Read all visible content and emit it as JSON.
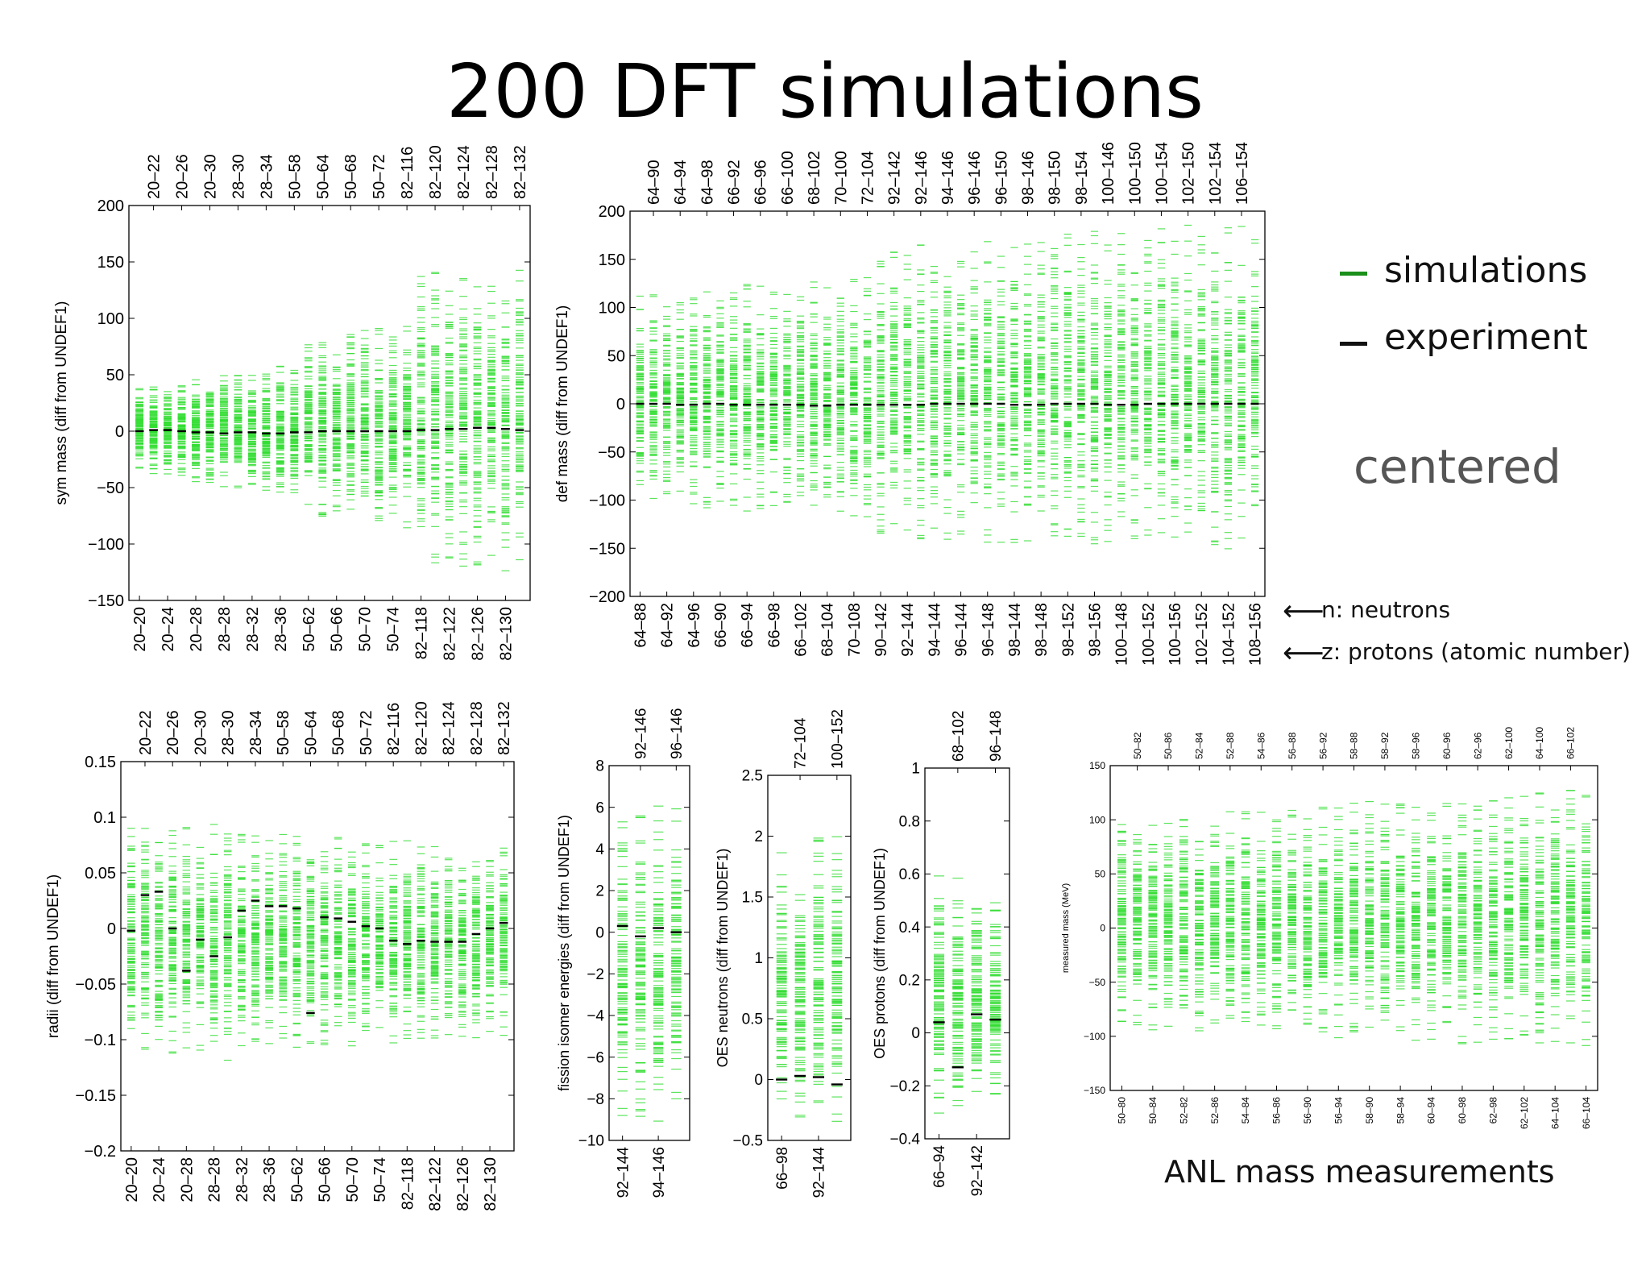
{
  "title": "200 DFT simulations",
  "legend": {
    "simulations": {
      "label": "simulations",
      "color": "#1a8f1a"
    },
    "experiment": {
      "label": "experiment",
      "color": "#111111"
    }
  },
  "centered_label": "centered",
  "notes": {
    "n": "n: neutrons",
    "z": "z: protons (atomic number)",
    "arrow": "⟵"
  },
  "anl_label": "ANL mass measurements",
  "colors": {
    "simulation": "#33dd33",
    "experiment": "#000000"
  },
  "chart_data": [
    {
      "type": "scatter",
      "ylabel": "sym mass (diff from UNDEF1)",
      "ylim": [
        -150,
        200
      ],
      "yticks": [
        -150,
        -100,
        -50,
        0,
        50,
        100,
        150,
        200
      ],
      "bottom_labels": [
        "20–20",
        "20–24",
        "20–28",
        "28–28",
        "28–32",
        "28–36",
        "50–62",
        "50–66",
        "50–70",
        "50–74",
        "82–118",
        "82–122",
        "82–126",
        "82–130"
      ],
      "top_labels": [
        "20–22",
        "20–26",
        "20–30",
        "28–30",
        "28–34",
        "50–58",
        "50–64",
        "50–68",
        "50–72",
        "82–116",
        "82–120",
        "82–124",
        "82–128",
        "82–132"
      ],
      "experiment": [
        0,
        1,
        1,
        0,
        -1,
        -1,
        -2,
        -1,
        -1,
        -2,
        -2,
        -1,
        -1,
        0,
        0,
        0,
        0,
        0,
        0,
        0,
        1,
        1,
        2,
        2,
        3,
        3,
        2,
        1
      ],
      "spread_low": [
        -35,
        -38,
        -40,
        -42,
        -45,
        -48,
        -50,
        -52,
        -55,
        -55,
        -58,
        -60,
        -75,
        -78,
        -78,
        -80,
        -82,
        -85,
        -85,
        -88,
        -120,
        -122,
        -124,
        -125,
        -125,
        -126,
        -126,
        -126
      ],
      "spread_high": [
        38,
        40,
        42,
        44,
        46,
        50,
        52,
        55,
        55,
        56,
        58,
        60,
        85,
        88,
        88,
        90,
        92,
        95,
        95,
        98,
        140,
        145,
        148,
        150,
        152,
        155,
        155,
        158
      ]
    },
    {
      "type": "scatter",
      "ylabel": "def mass (diff from UNDEF1)",
      "ylim": [
        -200,
        200
      ],
      "yticks": [
        -200,
        -150,
        -100,
        -50,
        0,
        50,
        100,
        150,
        200
      ],
      "bottom_labels": [
        "64–88",
        "64–92",
        "64–96",
        "66–90",
        "66–94",
        "66–98",
        "66–102",
        "68–104",
        "70–108",
        "90–142",
        "92–144",
        "94–144",
        "96–144",
        "96–148",
        "98–144",
        "98–148",
        "98–152",
        "98–156",
        "100–148",
        "100–152",
        "100–156",
        "102–152",
        "104–152",
        "108–156"
      ],
      "top_labels": [
        "64–90",
        "64–94",
        "64–98",
        "66–92",
        "66–96",
        "66–100",
        "68–102",
        "70–100",
        "72–104",
        "92–142",
        "92–146",
        "94–146",
        "96–146",
        "96–150",
        "98–146",
        "98–150",
        "98–154",
        "100–146",
        "100–150",
        "100–154",
        "102–150",
        "102–154",
        "106–154"
      ],
      "experiment": [
        0,
        0,
        0,
        -1,
        -1,
        0,
        0,
        -1,
        -1,
        -1,
        -1,
        -1,
        -1,
        -2,
        -2,
        -1,
        -1,
        -1,
        -1,
        -1,
        -1,
        -1,
        0,
        0,
        0,
        0,
        0,
        0,
        -1,
        -1,
        -1,
        0,
        0,
        0,
        0,
        -1,
        -1,
        -1,
        0,
        0,
        0,
        0,
        0,
        0,
        0,
        0,
        0
      ],
      "spread_low": [
        -100,
        -102,
        -104,
        -106,
        -108,
        -108,
        -110,
        -110,
        -112,
        -112,
        -112,
        -114,
        -114,
        -114,
        -116,
        -116,
        -118,
        -118,
        -140,
        -140,
        -140,
        -142,
        -142,
        -142,
        -143,
        -143,
        -144,
        -144,
        -145,
        -145,
        -146,
        -146,
        -147,
        -147,
        -148,
        -148,
        -148,
        -149,
        -150,
        -150,
        -150,
        -150,
        -151,
        -152,
        -153,
        -154,
        -155
      ],
      "spread_high": [
        112,
        114,
        116,
        118,
        120,
        120,
        122,
        122,
        124,
        126,
        126,
        128,
        128,
        130,
        130,
        132,
        132,
        132,
        165,
        166,
        168,
        168,
        170,
        170,
        172,
        172,
        174,
        174,
        175,
        176,
        177,
        178,
        178,
        180,
        180,
        181,
        182,
        183,
        184,
        185,
        185,
        186,
        186,
        187,
        188,
        189,
        190
      ]
    },
    {
      "type": "scatter",
      "ylabel": "radii (diff from UNDEF1)",
      "ylim": [
        -0.2,
        0.15
      ],
      "yticks": [
        -0.2,
        -0.15,
        -0.1,
        -0.05,
        0,
        0.05,
        0.1,
        0.15
      ],
      "bottom_labels": [
        "20–20",
        "20–24",
        "20–28",
        "28–28",
        "28–32",
        "28–36",
        "50–62",
        "50–66",
        "50–70",
        "50–74",
        "82–118",
        "82–122",
        "82–126",
        "82–130"
      ],
      "top_labels": [
        "20–22",
        "20–26",
        "20–30",
        "28–30",
        "28–34",
        "50–58",
        "50–64",
        "50–68",
        "50–72",
        "82–116",
        "82–120",
        "82–124",
        "82–128",
        "82–132"
      ],
      "experiment": [
        -0.002,
        0.03,
        0.033,
        0.0,
        -0.038,
        -0.01,
        -0.025,
        -0.008,
        0.016,
        0.025,
        0.02,
        0.02,
        0.018,
        -0.076,
        0.01,
        0.009,
        0.006,
        0.002,
        0.0,
        -0.011,
        -0.014,
        -0.011,
        -0.012,
        -0.012,
        -0.012,
        -0.005,
        0.0,
        0.005
      ],
      "spread_low": [
        -0.12,
        -0.12,
        -0.118,
        -0.115,
        -0.112,
        -0.11,
        -0.125,
        -0.12,
        -0.115,
        -0.11,
        -0.108,
        -0.106,
        -0.108,
        -0.11,
        -0.11,
        -0.108,
        -0.108,
        -0.106,
        -0.105,
        -0.104,
        -0.104,
        -0.104,
        -0.103,
        -0.102,
        -0.102,
        -0.1,
        -0.1,
        -0.1
      ],
      "spread_high": [
        0.1,
        0.098,
        0.096,
        0.095,
        0.094,
        0.092,
        0.1,
        0.098,
        0.09,
        0.09,
        0.088,
        0.086,
        0.085,
        0.084,
        0.084,
        0.083,
        0.082,
        0.082,
        0.08,
        0.08,
        0.079,
        0.079,
        0.078,
        0.078,
        0.078,
        0.077,
        0.076,
        0.075
      ]
    },
    {
      "type": "scatter",
      "ylabel": "fission isomer energies (diff from UNDEF1)",
      "ylim": [
        -10,
        8
      ],
      "yticks": [
        -10,
        -8,
        -6,
        -4,
        -2,
        0,
        2,
        4,
        6,
        8
      ],
      "bottom_labels": [
        "92–144",
        "94–146"
      ],
      "top_labels": [
        "92–146",
        "96–146"
      ],
      "experiment": [
        0.3,
        -0.2,
        0.2,
        0.0
      ],
      "spread_low": [
        -9.5,
        -9.3,
        -9.6,
        -9.4
      ],
      "spread_high": [
        6.0,
        5.8,
        6.2,
        6.1
      ]
    },
    {
      "type": "scatter",
      "ylabel": "OES neutrons (diff from UNDEF1)",
      "ylim": [
        -0.5,
        2.5
      ],
      "yticks": [
        -0.5,
        0,
        0.5,
        1,
        1.5,
        2,
        2.5
      ],
      "bottom_labels": [
        "66–98",
        "92–144"
      ],
      "top_labels": [
        "72–104",
        "100–152"
      ],
      "experiment": [
        0.0,
        0.03,
        0.02,
        -0.04
      ],
      "spread_low": [
        -0.4,
        -0.4,
        -0.4,
        -0.35
      ],
      "spread_high": [
        1.9,
        1.85,
        2.05,
        2.0
      ]
    },
    {
      "type": "scatter",
      "ylabel": "OES protons (diff from UNDEF1)",
      "ylim": [
        -0.4,
        1
      ],
      "yticks": [
        -0.4,
        -0.2,
        0,
        0.2,
        0.4,
        0.6,
        0.8,
        1
      ],
      "bottom_labels": [
        "66–94",
        "92–142"
      ],
      "top_labels": [
        "68–102",
        "96–148"
      ],
      "experiment": [
        0.04,
        -0.13,
        0.07,
        0.05
      ],
      "spread_low": [
        -0.35,
        -0.32,
        -0.3,
        -0.28
      ],
      "spread_high": [
        0.65,
        0.62,
        0.55,
        0.5
      ]
    },
    {
      "type": "scatter",
      "ylabel": "measured mass (MeV)",
      "ylim": [
        -150,
        150
      ],
      "yticks": [
        -150,
        -100,
        -50,
        0,
        50,
        100,
        150
      ],
      "bottom_labels": [
        "50–80",
        "50–84",
        "52–82",
        "52–86",
        "54–84",
        "56–86",
        "56–90",
        "56–94",
        "58–90",
        "58–94",
        "60–94",
        "60–98",
        "62–98",
        "62–102",
        "64–104",
        "66–104"
      ],
      "top_labels": [
        "50–82",
        "50–86",
        "52–84",
        "52–88",
        "54–86",
        "56–88",
        "56–92",
        "58–88",
        "58–92",
        "58–96",
        "60–96",
        "62–96",
        "62–100",
        "64–100",
        "66–102"
      ],
      "experiment": [],
      "spread_low": [
        -90,
        -92,
        -94,
        -95,
        -96,
        -96,
        -97,
        -98,
        -98,
        -99,
        -100,
        -100,
        -101,
        -101,
        -102,
        -102,
        -103,
        -104,
        -104,
        -105,
        -106,
        -106,
        -107,
        -108,
        -108,
        -109,
        -110,
        -110,
        -111,
        -112,
        -113
      ],
      "spread_high": [
        105,
        106,
        107,
        108,
        108,
        109,
        110,
        110,
        111,
        112,
        112,
        113,
        114,
        115,
        115,
        116,
        117,
        118,
        118,
        119,
        120,
        121,
        122,
        123,
        124,
        125,
        126,
        127,
        128,
        129,
        130
      ]
    }
  ]
}
